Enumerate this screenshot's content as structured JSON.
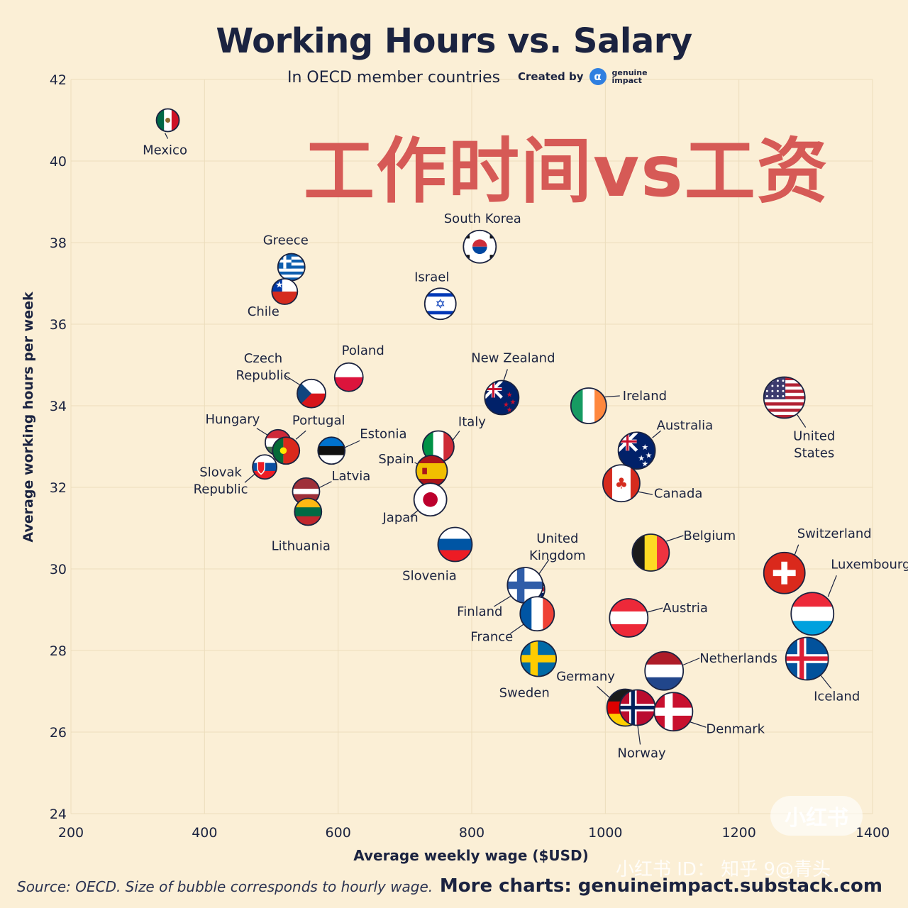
{
  "header": {
    "title": "Working Hours vs. Salary",
    "subtitle": "In OECD member countries",
    "credit_label": "Created by",
    "brand_name": "genuine impact"
  },
  "overlay_text": "工作时间vs工资",
  "footer": {
    "source": "Source: OECD. Size of bubble corresponds to hourly wage.",
    "more_charts": "More charts: genuineimpact.substack.com"
  },
  "watermark": {
    "badge": "小红书",
    "line": "小红书 ID： 知乎 9@青头"
  },
  "chart_data": {
    "type": "scatter",
    "title": "Working Hours vs. Salary",
    "subtitle": "In OECD member countries",
    "xlabel": "Average weekly wage ($USD)",
    "ylabel": "Average working hours per week",
    "xlim": [
      200,
      1400
    ],
    "ylim": [
      24,
      42
    ],
    "xticks": [
      200,
      400,
      600,
      800,
      1000,
      1200,
      1400
    ],
    "yticks": [
      24,
      26,
      28,
      30,
      32,
      34,
      36,
      38,
      40,
      42
    ],
    "grid": true,
    "size_encoding": "hourly wage",
    "points": [
      {
        "label": "Mexico",
        "x": 345,
        "y": 41.0
      },
      {
        "label": "Greece",
        "x": 530,
        "y": 37.4
      },
      {
        "label": "Chile",
        "x": 520,
        "y": 36.8
      },
      {
        "label": "South Korea",
        "x": 812,
        "y": 37.9
      },
      {
        "label": "Israel",
        "x": 753,
        "y": 36.5
      },
      {
        "label": "Czech Republic",
        "x": 560,
        "y": 34.3
      },
      {
        "label": "Poland",
        "x": 616,
        "y": 34.7
      },
      {
        "label": "New Zealand",
        "x": 845,
        "y": 34.2
      },
      {
        "label": "Ireland",
        "x": 975,
        "y": 34.0
      },
      {
        "label": "United States",
        "x": 1268,
        "y": 34.2
      },
      {
        "label": "Hungary",
        "x": 510,
        "y": 33.1
      },
      {
        "label": "Portugal",
        "x": 522,
        "y": 32.9
      },
      {
        "label": "Estonia",
        "x": 590,
        "y": 32.9
      },
      {
        "label": "Italy",
        "x": 750,
        "y": 33.0
      },
      {
        "label": "Australia",
        "x": 1047,
        "y": 32.9
      },
      {
        "label": "Spain",
        "x": 740,
        "y": 32.4
      },
      {
        "label": "Slovak Republic",
        "x": 490,
        "y": 32.5
      },
      {
        "label": "Latvia",
        "x": 552,
        "y": 31.9
      },
      {
        "label": "Canada",
        "x": 1024,
        "y": 32.1
      },
      {
        "label": "Japan",
        "x": 738,
        "y": 31.7
      },
      {
        "label": "Lithuania",
        "x": 555,
        "y": 31.4
      },
      {
        "label": "Slovenia",
        "x": 775,
        "y": 30.6
      },
      {
        "label": "Belgium",
        "x": 1068,
        "y": 30.4
      },
      {
        "label": "Switzerland",
        "x": 1268,
        "y": 29.9
      },
      {
        "label": "United Kingdom",
        "x": 888,
        "y": 29.5
      },
      {
        "label": "Finland",
        "x": 880,
        "y": 29.6
      },
      {
        "label": "Luxembourg",
        "x": 1310,
        "y": 28.9
      },
      {
        "label": "France",
        "x": 898,
        "y": 28.9
      },
      {
        "label": "Austria",
        "x": 1035,
        "y": 28.8
      },
      {
        "label": "Sweden",
        "x": 900,
        "y": 27.8
      },
      {
        "label": "Iceland",
        "x": 1302,
        "y": 27.8
      },
      {
        "label": "Netherlands",
        "x": 1088,
        "y": 27.5
      },
      {
        "label": "Germany",
        "x": 1030,
        "y": 26.6
      },
      {
        "label": "Norway",
        "x": 1048,
        "y": 26.6
      },
      {
        "label": "Denmark",
        "x": 1102,
        "y": 26.5
      }
    ]
  }
}
